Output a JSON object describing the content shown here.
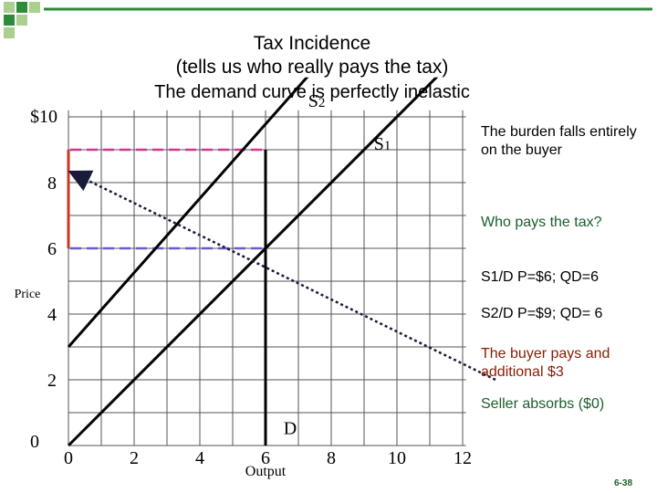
{
  "colors": {
    "accent_green": "#2e8b3a",
    "light_green": "#a9d08e",
    "red": "#c0392b",
    "pink": "#d6338c",
    "lavender": "#6a5acd",
    "axis_dark": "#1a1a2e",
    "arrow": "#1a1a3a"
  },
  "header": {
    "title": "Tax Incidence",
    "subtitle": "(tells us who really pays the tax)",
    "heading": "The demand curve is perfectly inelastic"
  },
  "annotations": {
    "burden": "The burden falls entirely on the buyer",
    "who_pays": "Who pays the tax?",
    "s1_d": "S1/D P=$6; QD=6",
    "s2_d": "S2/D P=$9; QD= 6",
    "buyer_pays": "The buyer pays and additional $3",
    "seller": "Seller absorbs ($0)"
  },
  "page_number": "6-38",
  "chart_data": {
    "type": "line",
    "xlabel": "Output",
    "ylabel": "Price",
    "xlim": [
      0,
      12
    ],
    "ylim": [
      0,
      10
    ],
    "grid": true,
    "x_ticks": [
      0,
      2,
      4,
      6,
      8,
      10,
      12
    ],
    "y_ticks": [
      0,
      2,
      4,
      6,
      8
    ],
    "top_price_label": "$10",
    "series": [
      {
        "name": "S1",
        "x": [
          0,
          12
        ],
        "y": [
          0,
          12
        ]
      },
      {
        "name": "S2",
        "x": [
          0,
          7.7
        ],
        "y": [
          3,
          11.7
        ]
      },
      {
        "name": "D",
        "x": [
          6,
          6
        ],
        "y": [
          0,
          9
        ]
      }
    ],
    "reference_lines": [
      {
        "label": "P=9",
        "price": 9,
        "quantity": 6,
        "color": "pink"
      },
      {
        "label": "P=6",
        "price": 6,
        "quantity": 6,
        "color": "lavender"
      }
    ],
    "tax_bracket": {
      "from": 6,
      "to": 9
    },
    "arrow": {
      "from": [
        13,
        2
      ],
      "to": [
        0,
        8.3
      ]
    },
    "origin_label": "0"
  }
}
